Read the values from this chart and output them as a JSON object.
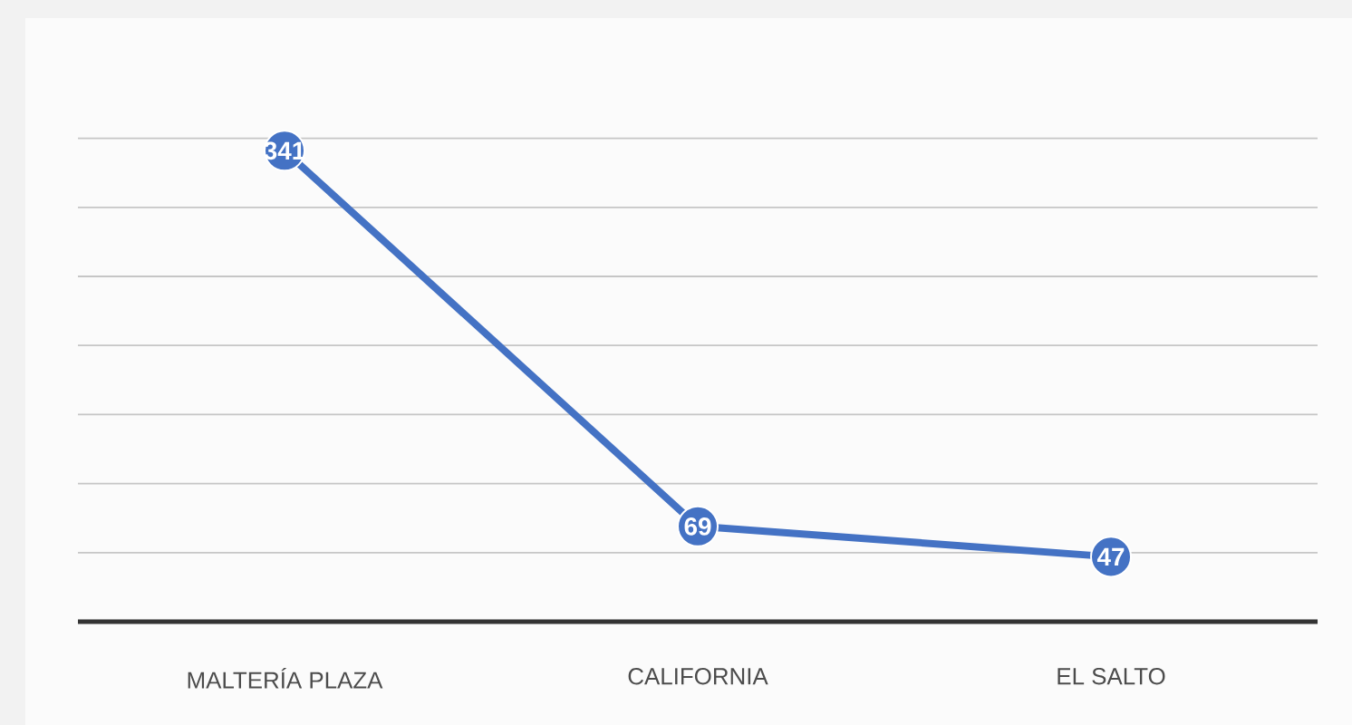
{
  "chart_data": {
    "type": "line",
    "categories": [
      "MALTERÍA PLAZA",
      "CALIFORNIA",
      "EL SALTO"
    ],
    "values": [
      341,
      69,
      47
    ],
    "color": "#4472c4",
    "tick_labels": "x",
    "grid": "y",
    "marker": "circle",
    "line_style": "solid",
    "data_labels": true
  }
}
